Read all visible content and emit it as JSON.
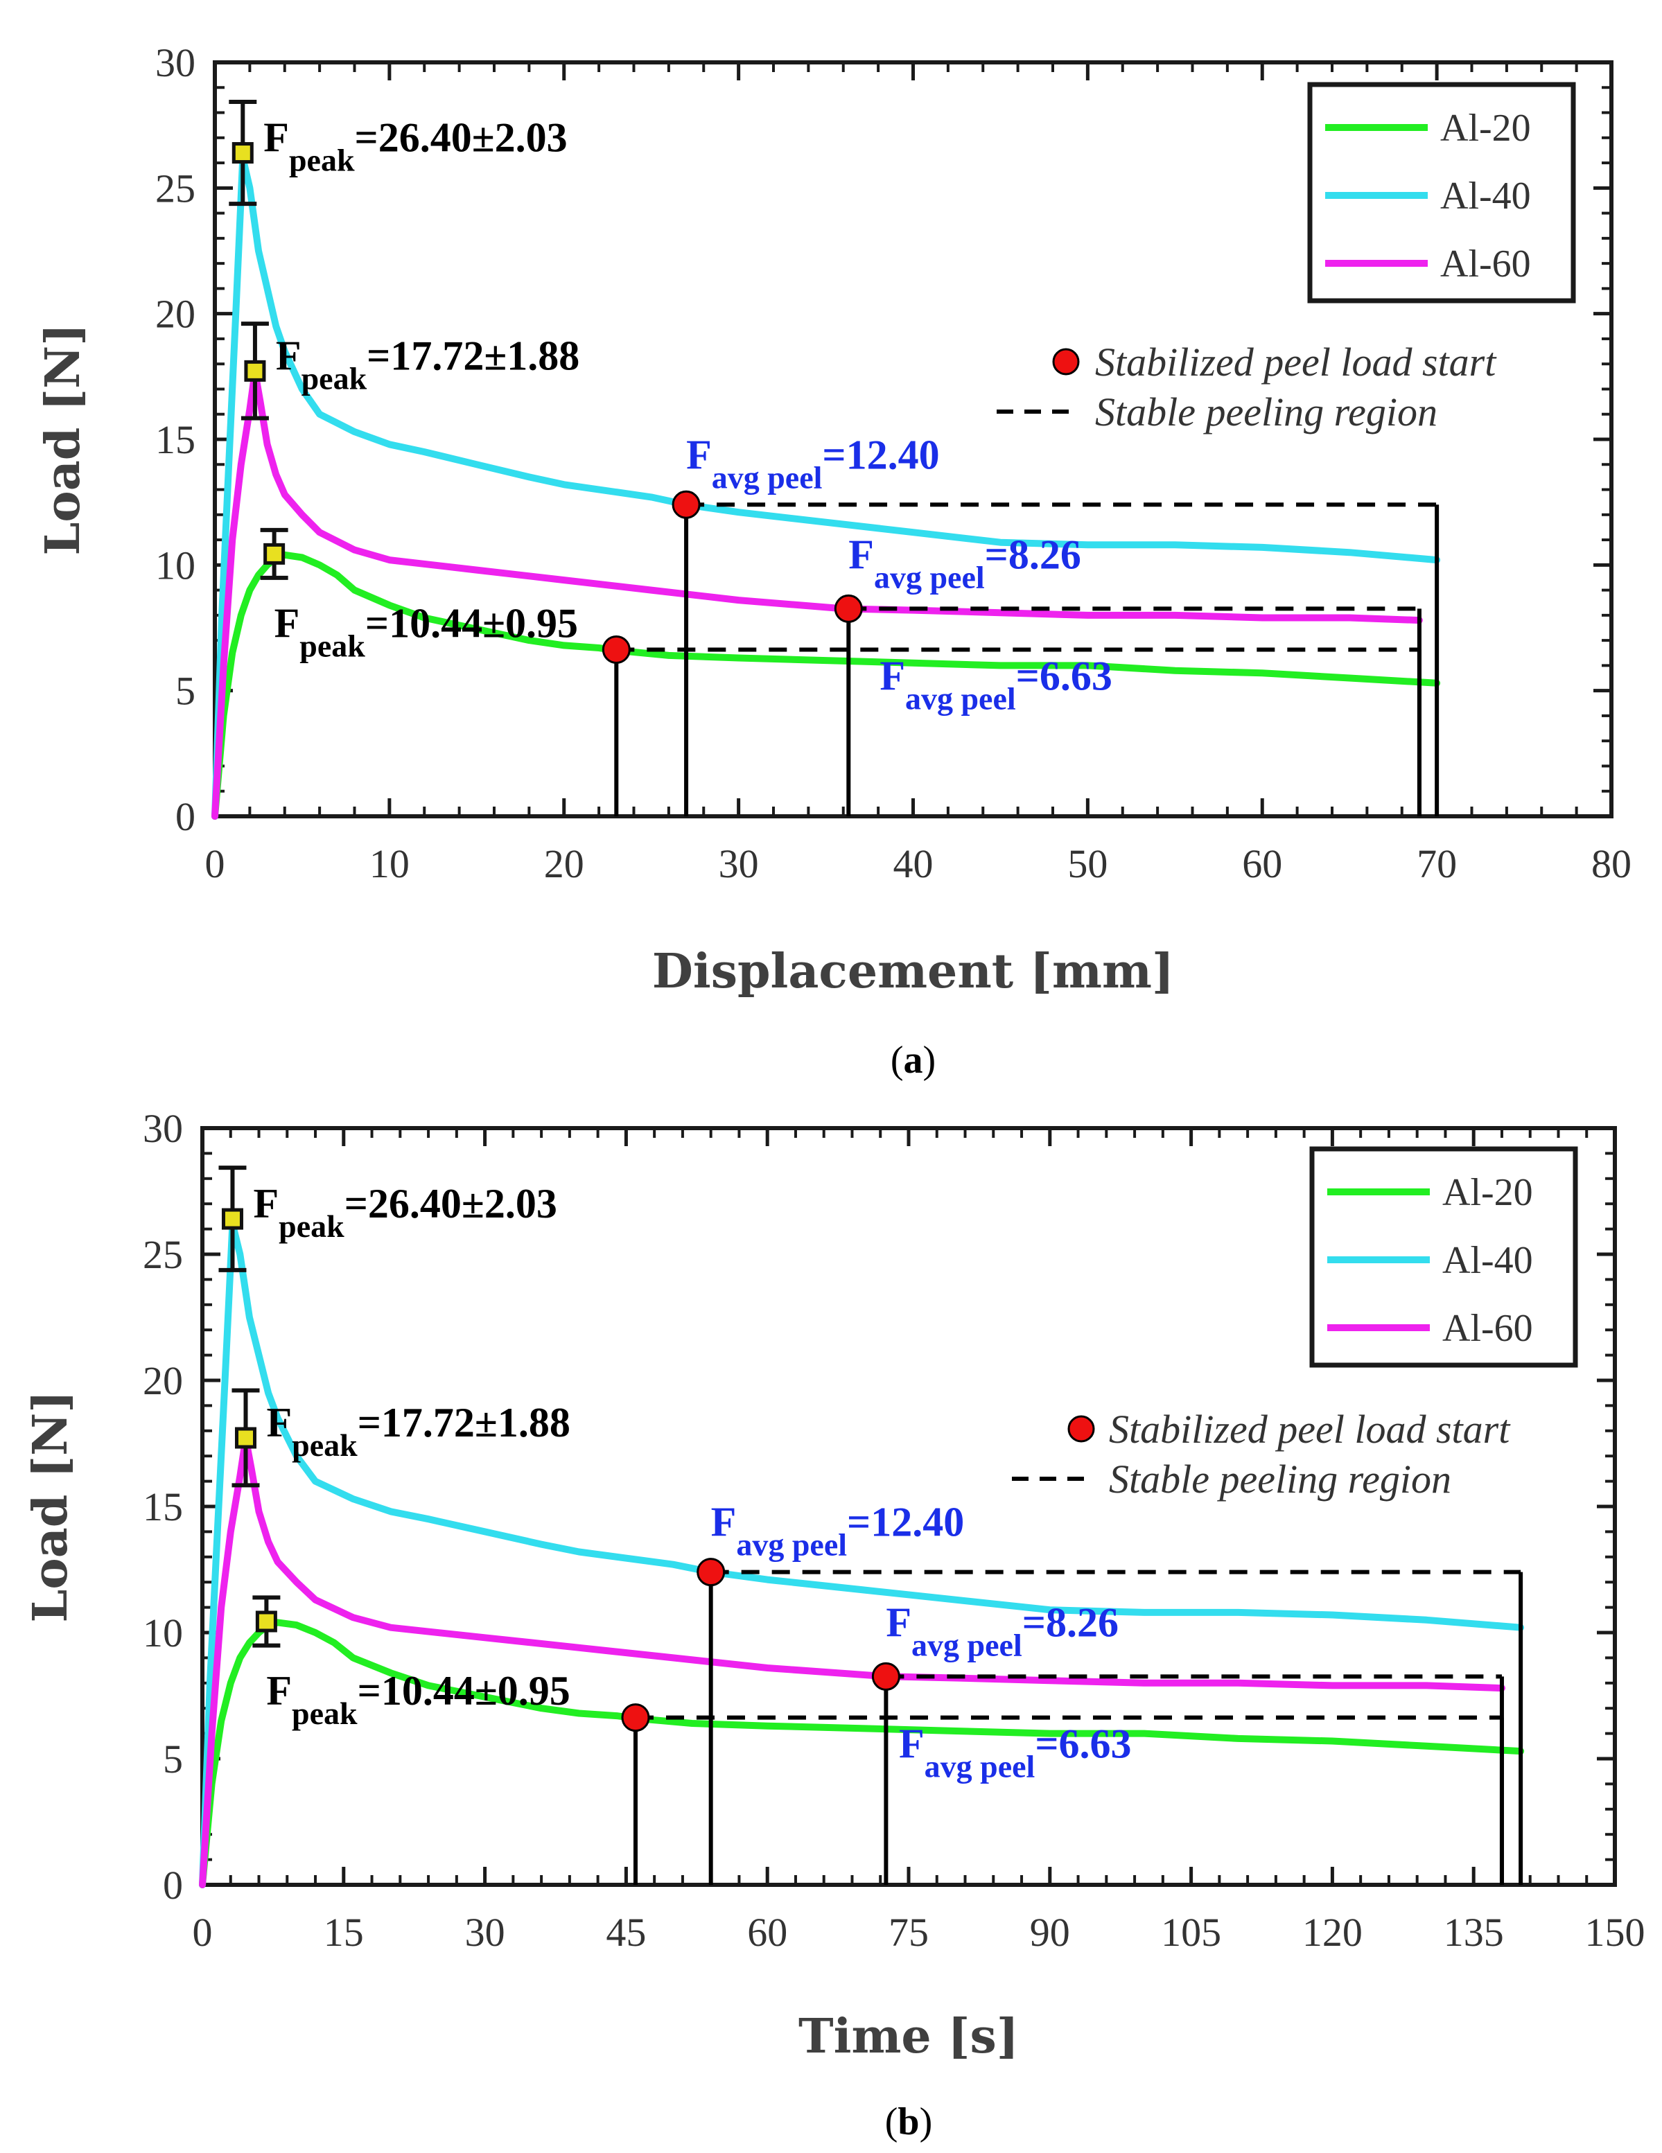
{
  "chart_data": [
    {
      "id": "a",
      "type": "line",
      "caption": "a",
      "xlabel": "Displacement [mm]",
      "ylabel": "Load [N]",
      "xlim": [
        0,
        80
      ],
      "ylim": [
        0,
        30
      ],
      "xticks": [
        0,
        10,
        20,
        30,
        40,
        50,
        60,
        70,
        80
      ],
      "yticks": [
        0,
        5,
        10,
        15,
        20,
        25,
        30
      ],
      "legend": {
        "position": "top-right",
        "entries": [
          "Al-20",
          "Al-40",
          "Al-60"
        ]
      },
      "note": {
        "marker_label": "Stabilized peel load start",
        "dash_label": "Stable peeling region"
      },
      "series": [
        {
          "name": "Al-20",
          "color": "#22ee22",
          "x": [
            0,
            0.5,
            1,
            1.5,
            2,
            2.5,
            3,
            3.5,
            4,
            5,
            6,
            7,
            8,
            10,
            12,
            14,
            16,
            18,
            20,
            22,
            23,
            26,
            30,
            35,
            40,
            45,
            50,
            55,
            60,
            65,
            70
          ],
          "y": [
            0,
            4,
            6.5,
            8,
            9,
            9.6,
            10,
            10.3,
            10.4,
            10.3,
            10.0,
            9.6,
            9.0,
            8.4,
            7.9,
            7.6,
            7.3,
            7.0,
            6.8,
            6.7,
            6.6,
            6.4,
            6.3,
            6.2,
            6.1,
            6.0,
            6.0,
            5.8,
            5.7,
            5.5,
            5.3
          ]
        },
        {
          "name": "Al-40",
          "color": "#33ddee",
          "x": [
            0,
            0.4,
            0.8,
            1.2,
            1.6,
            2,
            2.5,
            3,
            3.5,
            4,
            5,
            6,
            8,
            10,
            12,
            15,
            18,
            20,
            25,
            27,
            30,
            35,
            40,
            45,
            50,
            55,
            60,
            65,
            70
          ],
          "y": [
            0,
            8,
            14,
            20,
            26.2,
            25,
            22.5,
            21,
            19.5,
            18.5,
            17,
            16,
            15.3,
            14.8,
            14.5,
            14.0,
            13.5,
            13.2,
            12.7,
            12.4,
            12.1,
            11.7,
            11.3,
            10.9,
            10.8,
            10.8,
            10.7,
            10.5,
            10.2
          ]
        },
        {
          "name": "Al-60",
          "color": "#ee22ee",
          "x": [
            0,
            0.5,
            1,
            1.5,
            2,
            2.3,
            2.6,
            3,
            3.5,
            4,
            5,
            6,
            8,
            10,
            15,
            20,
            25,
            30,
            36,
            40,
            45,
            50,
            55,
            60,
            65,
            69
          ],
          "y": [
            0,
            6,
            11,
            14,
            16.2,
            17.7,
            16.5,
            14.8,
            13.6,
            12.8,
            12.0,
            11.3,
            10.6,
            10.2,
            9.8,
            9.4,
            9.0,
            8.6,
            8.26,
            8.2,
            8.1,
            8.0,
            8.0,
            7.9,
            7.9,
            7.8
          ]
        }
      ],
      "peaks": [
        {
          "series": "Al-40",
          "x": 1.6,
          "y": 26.4,
          "err": 2.03,
          "sub": "peak",
          "value": "=26.40±2.03",
          "pos": "right-top"
        },
        {
          "series": "Al-60",
          "x": 2.3,
          "y": 17.72,
          "err": 1.88,
          "sub": "peak",
          "value": "=17.72±1.88",
          "pos": "right-top"
        },
        {
          "series": "Al-20",
          "x": 3.4,
          "y": 10.44,
          "err": 0.95,
          "sub": "peak",
          "value": "=10.44±0.95",
          "pos": "below"
        }
      ],
      "stable": [
        {
          "series": "Al-20",
          "start": 23,
          "end": 69,
          "load": 6.63,
          "label_sub": "avg peel",
          "label_value": "=6.63",
          "label_pos": "below"
        },
        {
          "series": "Al-40",
          "start": 27,
          "end": 70,
          "load": 12.4,
          "label_sub": "avg peel",
          "label_value": "=12.40",
          "label_pos": "above"
        },
        {
          "series": "Al-60",
          "start": 36.3,
          "end": 69,
          "load": 8.26,
          "label_sub": "avg peel",
          "label_value": "=8.26",
          "label_pos": "above"
        }
      ]
    },
    {
      "id": "b",
      "type": "line",
      "caption": "b",
      "xlabel": "Time [s]",
      "ylabel": "Load [N]",
      "xlim": [
        0,
        150
      ],
      "ylim": [
        0,
        30
      ],
      "xticks": [
        0,
        15,
        30,
        45,
        60,
        75,
        90,
        105,
        120,
        135,
        150
      ],
      "yticks": [
        0,
        5,
        10,
        15,
        20,
        25,
        30
      ],
      "legend": {
        "position": "top-right",
        "entries": [
          "Al-20",
          "Al-40",
          "Al-60"
        ]
      },
      "note": {
        "marker_label": "Stabilized peel load start",
        "dash_label": "Stable peeling region"
      },
      "series": [
        {
          "name": "Al-20",
          "color": "#22ee22",
          "x": [
            0,
            1,
            2,
            3,
            4,
            5,
            6,
            7,
            8,
            10,
            12,
            14,
            16,
            20,
            24,
            28,
            32,
            36,
            40,
            44,
            46,
            52,
            60,
            70,
            80,
            90,
            100,
            110,
            120,
            130,
            140
          ],
          "y": [
            0,
            4,
            6.5,
            8,
            9,
            9.6,
            10,
            10.3,
            10.4,
            10.3,
            10.0,
            9.6,
            9.0,
            8.4,
            7.9,
            7.6,
            7.3,
            7.0,
            6.8,
            6.7,
            6.6,
            6.4,
            6.3,
            6.2,
            6.1,
            6.0,
            6.0,
            5.8,
            5.7,
            5.5,
            5.3
          ]
        },
        {
          "name": "Al-40",
          "color": "#33ddee",
          "x": [
            0,
            0.8,
            1.6,
            2.4,
            3.2,
            4,
            5,
            6,
            7,
            8,
            10,
            12,
            16,
            20,
            24,
            30,
            36,
            40,
            50,
            54,
            60,
            70,
            80,
            90,
            100,
            110,
            120,
            130,
            140
          ],
          "y": [
            0,
            8,
            14,
            20,
            26.2,
            25,
            22.5,
            21,
            19.5,
            18.5,
            17,
            16,
            15.3,
            14.8,
            14.5,
            14.0,
            13.5,
            13.2,
            12.7,
            12.4,
            12.1,
            11.7,
            11.3,
            10.9,
            10.8,
            10.8,
            10.7,
            10.5,
            10.2
          ]
        },
        {
          "name": "Al-60",
          "color": "#ee22ee",
          "x": [
            0,
            1,
            2,
            3,
            4,
            4.6,
            5.2,
            6,
            7,
            8,
            10,
            12,
            16,
            20,
            30,
            40,
            50,
            60,
            72.6,
            80,
            90,
            100,
            110,
            120,
            130,
            138
          ],
          "y": [
            0,
            6,
            11,
            14,
            16.2,
            17.7,
            16.5,
            14.8,
            13.6,
            12.8,
            12.0,
            11.3,
            10.6,
            10.2,
            9.8,
            9.4,
            9.0,
            8.6,
            8.26,
            8.2,
            8.1,
            8.0,
            8.0,
            7.9,
            7.9,
            7.8
          ]
        }
      ],
      "peaks": [
        {
          "series": "Al-40",
          "x": 3.2,
          "y": 26.4,
          "err": 2.03,
          "sub": "peak",
          "value": "=26.40±2.03",
          "pos": "right-top"
        },
        {
          "series": "Al-60",
          "x": 4.6,
          "y": 17.72,
          "err": 1.88,
          "sub": "peak",
          "value": "=17.72±1.88",
          "pos": "right-top"
        },
        {
          "series": "Al-20",
          "x": 6.8,
          "y": 10.44,
          "err": 0.95,
          "sub": "peak",
          "value": "=10.44±0.95",
          "pos": "below"
        }
      ],
      "stable": [
        {
          "series": "Al-20",
          "start": 46,
          "end": 138,
          "load": 6.63,
          "label_sub": "avg peel",
          "label_value": "=6.63",
          "label_pos": "below"
        },
        {
          "series": "Al-40",
          "start": 54,
          "end": 140,
          "load": 12.4,
          "label_sub": "avg peel",
          "label_value": "=12.40",
          "label_pos": "above"
        },
        {
          "series": "Al-60",
          "start": 72.6,
          "end": 138,
          "load": 8.26,
          "label_sub": "avg peel",
          "label_value": "=8.26",
          "label_pos": "above"
        }
      ]
    }
  ],
  "annotation_symbol": "F",
  "colors": {
    "peel_label": "#1a2ee8",
    "marker_fill": "#ee1111",
    "peak_marker": "#e8e020",
    "frame": "#1a1a1a"
  }
}
